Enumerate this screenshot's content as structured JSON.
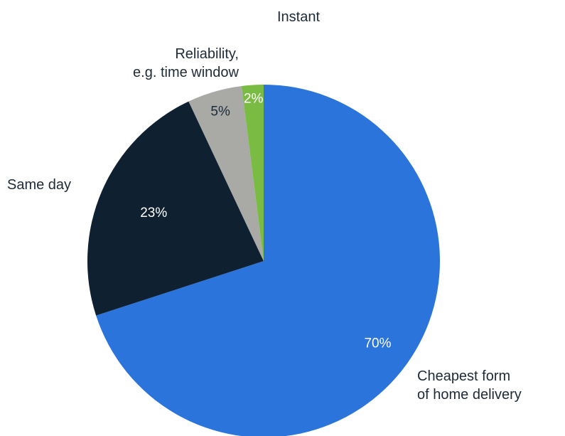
{
  "chart_data": {
    "type": "pie",
    "title": "",
    "slices": [
      {
        "label": [
          "Cheapest form",
          "of home delivery"
        ],
        "value": 70,
        "value_label": "70%",
        "color": "#2a74db",
        "text_color": "#ffffff"
      },
      {
        "label": [
          "Same day"
        ],
        "value": 23,
        "value_label": "23%",
        "color": "#0f2131",
        "text_color": "#ffffff"
      },
      {
        "label": [
          "Reliability,",
          "e.g. time window"
        ],
        "value": 5,
        "value_label": "5%",
        "color": "#a9aaa6",
        "text_color": "#1e2a36"
      },
      {
        "label": [
          "Instant"
        ],
        "value": 2,
        "value_label": "2%",
        "color": "#79bb43",
        "text_color": "#ffffff"
      }
    ],
    "start_angle": "12 o'clock",
    "direction": "clockwise"
  }
}
